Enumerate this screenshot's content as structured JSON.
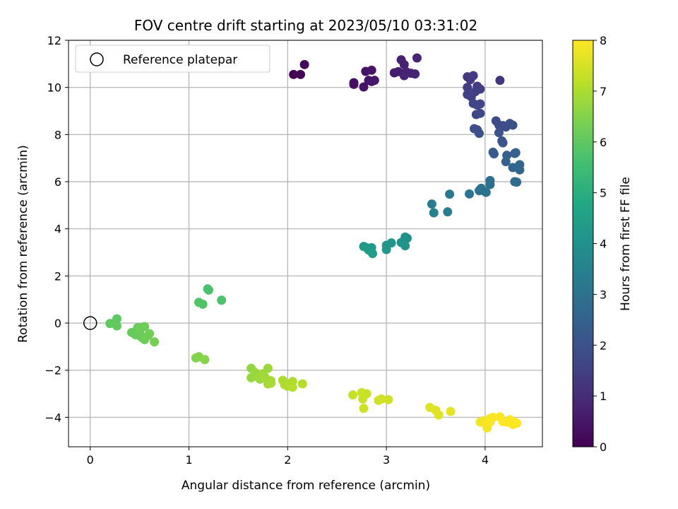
{
  "chart_data": {
    "type": "scatter",
    "title": "FOV centre drift starting at 2023/05/10 03:31:02",
    "xlabel": "Angular distance from reference (arcmin)",
    "ylabel": "Rotation from reference (arcmin)",
    "xlim": [
      -0.22,
      4.58
    ],
    "ylim": [
      -5.25,
      12.0
    ],
    "xticks": [
      0,
      1,
      2,
      3,
      4
    ],
    "yticks": [
      -4,
      -2,
      0,
      2,
      4,
      6,
      8,
      10,
      12
    ],
    "grid": true,
    "legend": {
      "position": "top-left",
      "entries": [
        "Reference platepar"
      ]
    },
    "reference_point": {
      "x": 0,
      "y": 0,
      "label": "Reference platepar"
    },
    "colorbar": {
      "label": "Hours from first FF file",
      "range": [
        0,
        8
      ],
      "ticks": [
        0,
        1,
        2,
        3,
        4,
        5,
        6,
        7,
        8
      ],
      "colormap": "viridis"
    },
    "points": [
      {
        "x": 2.06,
        "y": 10.55,
        "h": 0.0
      },
      {
        "x": 2.13,
        "y": 10.55,
        "h": 0.05
      },
      {
        "x": 2.17,
        "y": 10.97,
        "h": 0.1
      },
      {
        "x": 2.67,
        "y": 10.2,
        "h": 0.3
      },
      {
        "x": 2.67,
        "y": 10.13,
        "h": 0.3
      },
      {
        "x": 2.77,
        "y": 10.02,
        "h": 0.4
      },
      {
        "x": 2.79,
        "y": 10.68,
        "h": 0.4
      },
      {
        "x": 2.82,
        "y": 10.3,
        "h": 0.45
      },
      {
        "x": 2.85,
        "y": 10.73,
        "h": 0.45
      },
      {
        "x": 2.85,
        "y": 10.25,
        "h": 0.5
      },
      {
        "x": 2.88,
        "y": 10.3,
        "h": 0.5
      },
      {
        "x": 3.08,
        "y": 10.62,
        "h": 0.6
      },
      {
        "x": 3.12,
        "y": 10.67,
        "h": 0.65
      },
      {
        "x": 3.15,
        "y": 11.17,
        "h": 0.7
      },
      {
        "x": 3.18,
        "y": 10.97,
        "h": 0.7
      },
      {
        "x": 3.18,
        "y": 10.5,
        "h": 0.75
      },
      {
        "x": 3.2,
        "y": 10.67,
        "h": 0.75
      },
      {
        "x": 3.25,
        "y": 10.6,
        "h": 0.8
      },
      {
        "x": 3.29,
        "y": 10.57,
        "h": 0.8
      },
      {
        "x": 3.31,
        "y": 11.25,
        "h": 0.85
      },
      {
        "x": 3.82,
        "y": 10.45,
        "h": 1.3
      },
      {
        "x": 3.85,
        "y": 10.33,
        "h": 1.35
      },
      {
        "x": 3.88,
        "y": 10.5,
        "h": 1.35
      },
      {
        "x": 3.82,
        "y": 10.0,
        "h": 1.4
      },
      {
        "x": 3.92,
        "y": 10.05,
        "h": 1.4
      },
      {
        "x": 3.95,
        "y": 9.93,
        "h": 1.45
      },
      {
        "x": 3.9,
        "y": 9.82,
        "h": 1.5
      },
      {
        "x": 3.82,
        "y": 9.7,
        "h": 1.5
      },
      {
        "x": 3.86,
        "y": 9.6,
        "h": 1.55
      },
      {
        "x": 3.88,
        "y": 9.32,
        "h": 1.6
      },
      {
        "x": 3.92,
        "y": 9.25,
        "h": 1.6
      },
      {
        "x": 3.95,
        "y": 9.3,
        "h": 1.65
      },
      {
        "x": 3.91,
        "y": 8.85,
        "h": 1.7
      },
      {
        "x": 3.95,
        "y": 8.9,
        "h": 1.75
      },
      {
        "x": 4.15,
        "y": 10.3,
        "h": 1.2
      },
      {
        "x": 3.89,
        "y": 8.25,
        "h": 1.9
      },
      {
        "x": 3.92,
        "y": 8.2,
        "h": 1.9
      },
      {
        "x": 3.94,
        "y": 8.05,
        "h": 1.95
      },
      {
        "x": 4.11,
        "y": 8.58,
        "h": 1.8
      },
      {
        "x": 4.14,
        "y": 8.4,
        "h": 1.85
      },
      {
        "x": 4.18,
        "y": 8.38,
        "h": 1.85
      },
      {
        "x": 4.21,
        "y": 8.32,
        "h": 1.9
      },
      {
        "x": 4.25,
        "y": 8.47,
        "h": 1.9
      },
      {
        "x": 4.28,
        "y": 8.4,
        "h": 1.95
      },
      {
        "x": 4.14,
        "y": 8.08,
        "h": 2.0
      },
      {
        "x": 4.17,
        "y": 7.73,
        "h": 2.1
      },
      {
        "x": 4.18,
        "y": 7.65,
        "h": 2.1
      },
      {
        "x": 4.08,
        "y": 7.25,
        "h": 2.3
      },
      {
        "x": 4.09,
        "y": 7.18,
        "h": 2.3
      },
      {
        "x": 4.22,
        "y": 7.12,
        "h": 2.4
      },
      {
        "x": 4.21,
        "y": 6.85,
        "h": 2.5
      },
      {
        "x": 4.3,
        "y": 7.2,
        "h": 2.4
      },
      {
        "x": 4.31,
        "y": 7.23,
        "h": 2.45
      },
      {
        "x": 4.28,
        "y": 6.6,
        "h": 2.6
      },
      {
        "x": 4.35,
        "y": 6.72,
        "h": 2.6
      },
      {
        "x": 4.35,
        "y": 6.5,
        "h": 2.65
      },
      {
        "x": 4.3,
        "y": 6.0,
        "h": 2.8
      },
      {
        "x": 4.32,
        "y": 5.98,
        "h": 2.8
      },
      {
        "x": 3.94,
        "y": 5.62,
        "h": 3.0
      },
      {
        "x": 3.96,
        "y": 5.72,
        "h": 3.0
      },
      {
        "x": 3.99,
        "y": 5.6,
        "h": 3.05
      },
      {
        "x": 4.01,
        "y": 5.55,
        "h": 3.05
      },
      {
        "x": 4.05,
        "y": 6.05,
        "h": 2.9
      },
      {
        "x": 4.05,
        "y": 5.88,
        "h": 2.95
      },
      {
        "x": 3.84,
        "y": 5.48,
        "h": 3.1
      },
      {
        "x": 3.64,
        "y": 5.47,
        "h": 3.2
      },
      {
        "x": 3.62,
        "y": 4.72,
        "h": 3.4
      },
      {
        "x": 3.46,
        "y": 5.05,
        "h": 3.3
      },
      {
        "x": 3.48,
        "y": 4.68,
        "h": 3.45
      },
      {
        "x": 2.77,
        "y": 3.25,
        "h": 4.3
      },
      {
        "x": 2.8,
        "y": 3.2,
        "h": 4.3
      },
      {
        "x": 2.82,
        "y": 3.1,
        "h": 4.35
      },
      {
        "x": 2.85,
        "y": 3.2,
        "h": 4.35
      },
      {
        "x": 2.86,
        "y": 2.95,
        "h": 4.4
      },
      {
        "x": 3.0,
        "y": 3.3,
        "h": 4.2
      },
      {
        "x": 3.05,
        "y": 3.4,
        "h": 4.2
      },
      {
        "x": 3.0,
        "y": 3.12,
        "h": 4.25
      },
      {
        "x": 3.15,
        "y": 3.42,
        "h": 4.1
      },
      {
        "x": 3.19,
        "y": 3.65,
        "h": 4.0
      },
      {
        "x": 3.21,
        "y": 3.6,
        "h": 4.0
      },
      {
        "x": 3.19,
        "y": 3.28,
        "h": 4.15
      },
      {
        "x": 1.1,
        "y": 0.88,
        "h": 5.8
      },
      {
        "x": 1.14,
        "y": 0.8,
        "h": 5.8
      },
      {
        "x": 1.19,
        "y": 1.45,
        "h": 5.7
      },
      {
        "x": 1.2,
        "y": 1.4,
        "h": 5.7
      },
      {
        "x": 1.33,
        "y": 0.97,
        "h": 5.75
      },
      {
        "x": 0.2,
        "y": -0.02,
        "h": 6.0
      },
      {
        "x": 0.27,
        "y": 0.18,
        "h": 6.0
      },
      {
        "x": 0.27,
        "y": -0.12,
        "h": 6.05
      },
      {
        "x": 0.42,
        "y": -0.4,
        "h": 6.1
      },
      {
        "x": 0.46,
        "y": -0.5,
        "h": 6.1
      },
      {
        "x": 0.48,
        "y": -0.2,
        "h": 6.1
      },
      {
        "x": 0.5,
        "y": -0.35,
        "h": 6.15
      },
      {
        "x": 0.52,
        "y": -0.6,
        "h": 6.15
      },
      {
        "x": 0.55,
        "y": -0.15,
        "h": 6.2
      },
      {
        "x": 0.55,
        "y": -0.7,
        "h": 6.2
      },
      {
        "x": 0.6,
        "y": -0.45,
        "h": 6.25
      },
      {
        "x": 0.65,
        "y": -0.8,
        "h": 6.3
      },
      {
        "x": 0.58,
        "y": -0.55,
        "h": 6.25
      },
      {
        "x": 0.5,
        "y": -0.2,
        "h": 6.2
      },
      {
        "x": 1.07,
        "y": -1.48,
        "h": 6.5
      },
      {
        "x": 1.1,
        "y": -1.43,
        "h": 6.5
      },
      {
        "x": 1.16,
        "y": -1.55,
        "h": 6.55
      },
      {
        "x": 1.63,
        "y": -1.92,
        "h": 6.7
      },
      {
        "x": 1.63,
        "y": -2.32,
        "h": 6.75
      },
      {
        "x": 1.67,
        "y": -2.1,
        "h": 6.75
      },
      {
        "x": 1.7,
        "y": -2.3,
        "h": 6.8
      },
      {
        "x": 1.72,
        "y": -2.38,
        "h": 6.8
      },
      {
        "x": 1.75,
        "y": -2.15,
        "h": 6.85
      },
      {
        "x": 1.77,
        "y": -2.3,
        "h": 6.85
      },
      {
        "x": 1.8,
        "y": -2.58,
        "h": 6.9
      },
      {
        "x": 1.8,
        "y": -1.92,
        "h": 6.8
      },
      {
        "x": 1.83,
        "y": -2.45,
        "h": 6.9
      },
      {
        "x": 1.83,
        "y": -2.55,
        "h": 6.95
      },
      {
        "x": 1.95,
        "y": -2.43,
        "h": 7.0
      },
      {
        "x": 1.97,
        "y": -2.62,
        "h": 7.0
      },
      {
        "x": 2.0,
        "y": -2.68,
        "h": 7.05
      },
      {
        "x": 2.03,
        "y": -2.55,
        "h": 7.05
      },
      {
        "x": 2.05,
        "y": -2.48,
        "h": 7.05
      },
      {
        "x": 2.05,
        "y": -2.72,
        "h": 7.1
      },
      {
        "x": 2.15,
        "y": -2.58,
        "h": 7.1
      },
      {
        "x": 2.66,
        "y": -3.05,
        "h": 7.3
      },
      {
        "x": 2.75,
        "y": -2.95,
        "h": 7.35
      },
      {
        "x": 2.76,
        "y": -3.22,
        "h": 7.35
      },
      {
        "x": 2.77,
        "y": -3.62,
        "h": 7.4
      },
      {
        "x": 2.8,
        "y": -3.0,
        "h": 7.35
      },
      {
        "x": 2.92,
        "y": -3.28,
        "h": 7.4
      },
      {
        "x": 2.95,
        "y": -3.22,
        "h": 7.45
      },
      {
        "x": 3.02,
        "y": -3.25,
        "h": 7.45
      },
      {
        "x": 3.44,
        "y": -3.58,
        "h": 7.6
      },
      {
        "x": 3.5,
        "y": -3.7,
        "h": 7.65
      },
      {
        "x": 3.53,
        "y": -3.9,
        "h": 7.65
      },
      {
        "x": 3.65,
        "y": -3.75,
        "h": 7.7
      },
      {
        "x": 3.95,
        "y": -4.2,
        "h": 7.85
      },
      {
        "x": 3.98,
        "y": -4.15,
        "h": 7.85
      },
      {
        "x": 4.0,
        "y": -4.25,
        "h": 7.9
      },
      {
        "x": 4.02,
        "y": -4.45,
        "h": 7.9
      },
      {
        "x": 4.05,
        "y": -4.05,
        "h": 7.9
      },
      {
        "x": 4.08,
        "y": -4.0,
        "h": 7.95
      },
      {
        "x": 4.05,
        "y": -4.2,
        "h": 7.95
      },
      {
        "x": 4.15,
        "y": -3.98,
        "h": 7.95
      },
      {
        "x": 4.18,
        "y": -4.18,
        "h": 8.0
      },
      {
        "x": 4.22,
        "y": -4.2,
        "h": 8.0
      },
      {
        "x": 4.25,
        "y": -4.1,
        "h": 8.0
      },
      {
        "x": 4.28,
        "y": -4.3,
        "h": 8.0
      },
      {
        "x": 4.3,
        "y": -4.2,
        "h": 8.0
      },
      {
        "x": 4.32,
        "y": -4.25,
        "h": 8.0
      }
    ]
  }
}
